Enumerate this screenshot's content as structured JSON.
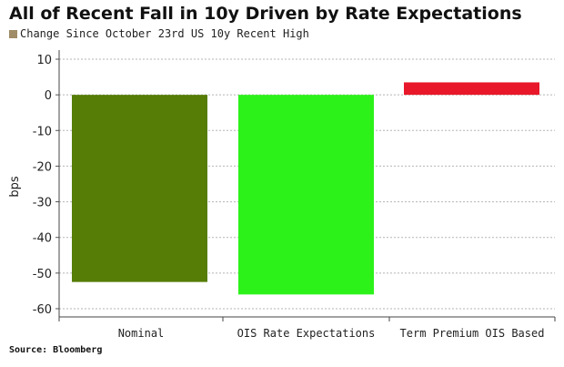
{
  "title": "All of Recent Fall in 10y Driven by Rate Expectations",
  "legend": {
    "label": "Change Since October 23rd US 10y Recent High",
    "color": "#a08c66"
  },
  "source": "Source: Bloomberg",
  "chart_data": {
    "type": "bar",
    "categories": [
      "Nominal",
      "OIS Rate Expectations",
      "Term Premium OIS Based"
    ],
    "values": [
      -52.5,
      -56,
      3.5
    ],
    "colors": [
      "#567d06",
      "#2cf21a",
      "#e8182a"
    ],
    "ylabel": "bps",
    "ylim": [
      -62,
      12
    ],
    "yticks": [
      10,
      0,
      -10,
      -20,
      -30,
      -40,
      -50,
      -60
    ],
    "grid": true
  }
}
